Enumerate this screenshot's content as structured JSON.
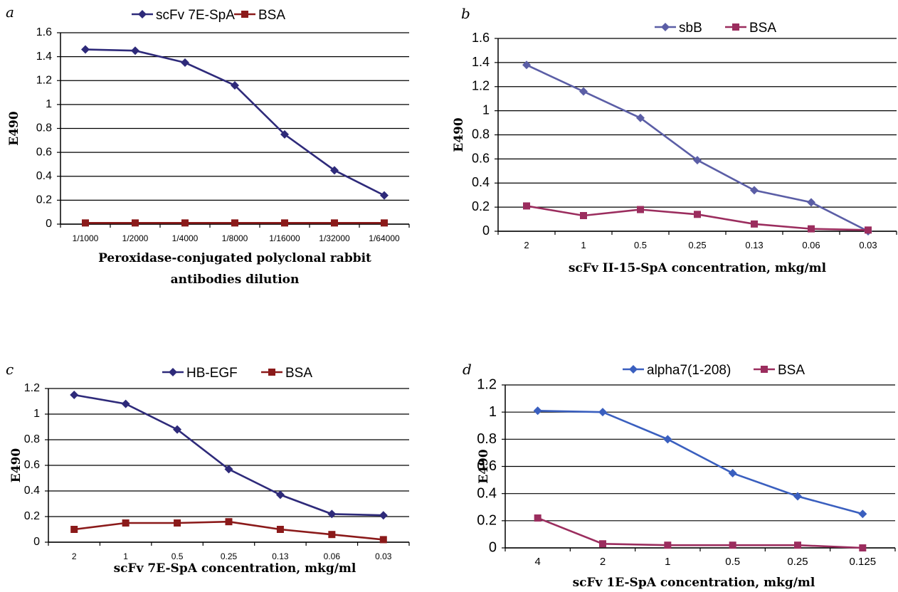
{
  "chart_data": [
    {
      "panel": "a",
      "type": "line",
      "ylabel": "E490",
      "xlabel": [
        "Peroxidase-conjugated polyclonal rabbit",
        "antibodies dilution"
      ],
      "categories": [
        "1/1000",
        "1/2000",
        "1/4000",
        "1/8000",
        "1/16000",
        "1/32000",
        "1/64000"
      ],
      "ylim": [
        0,
        1.6
      ],
      "yticks": [
        "0",
        "0.2",
        "0.4",
        "0.6",
        "0.8",
        "1",
        "1.2",
        "1.4",
        "1.6"
      ],
      "grid": true,
      "legend": "top",
      "series": [
        {
          "name": "scFv 7E-SpA",
          "color": "#2e2a7a",
          "marker": "diamond",
          "values": [
            1.46,
            1.45,
            1.35,
            1.16,
            0.75,
            0.45,
            0.24
          ]
        },
        {
          "name": "BSA",
          "color": "#8b1a1a",
          "marker": "square",
          "values": [
            0.01,
            0.01,
            0.01,
            0.01,
            0.01,
            0.01,
            0.01
          ]
        }
      ]
    },
    {
      "panel": "b",
      "type": "line",
      "ylabel": "E490",
      "xlabel": [
        "scFv II-15-SpA concentration, mkg/ml"
      ],
      "categories": [
        "2",
        "1",
        "0.5",
        "0.25",
        "0.13",
        "0.06",
        "0.03"
      ],
      "ylim": [
        0,
        1.6
      ],
      "yticks": [
        "0",
        "0.2",
        "0.4",
        "0.6",
        "0.8",
        "1",
        "1.2",
        "1.4",
        "1.6"
      ],
      "grid": true,
      "legend": "top",
      "series": [
        {
          "name": "sbB",
          "color": "#5b5ea6",
          "marker": "diamond",
          "values": [
            1.38,
            1.16,
            0.94,
            0.59,
            0.34,
            0.24,
            0.0
          ]
        },
        {
          "name": "BSA",
          "color": "#9b2d5e",
          "marker": "square",
          "values": [
            0.21,
            0.13,
            0.18,
            0.14,
            0.06,
            0.02,
            0.01
          ]
        }
      ]
    },
    {
      "panel": "c",
      "type": "line",
      "ylabel": "E490",
      "xlabel": [
        "scFv 7E-SpA concentration, mkg/ml"
      ],
      "categories": [
        "2",
        "1",
        "0.5",
        "0.25",
        "0.13",
        "0.06",
        "0.03"
      ],
      "ylim": [
        0,
        1.2
      ],
      "yticks": [
        "0",
        "0.2",
        "0.4",
        "0.6",
        "0.8",
        "1",
        "1.2"
      ],
      "grid": true,
      "legend": "top",
      "series": [
        {
          "name": "HB-EGF",
          "color": "#2e2a7a",
          "marker": "diamond",
          "values": [
            1.15,
            1.08,
            0.88,
            0.57,
            0.37,
            0.22,
            0.21
          ]
        },
        {
          "name": "BSA",
          "color": "#8b1a1a",
          "marker": "square",
          "values": [
            0.1,
            0.15,
            0.15,
            0.16,
            0.1,
            0.06,
            0.02
          ]
        }
      ]
    },
    {
      "panel": "d",
      "type": "line",
      "ylabel": "E490",
      "xlabel": [
        "scFv 1E-SpA concentration, mkg/ml"
      ],
      "categories": [
        "4",
        "2",
        "1",
        "0.5",
        "0.25",
        "0.125"
      ],
      "ylim": [
        0,
        1.2
      ],
      "yticks": [
        "0",
        "0.2",
        "0.4",
        "0.6",
        "0.8",
        "1",
        "1.2"
      ],
      "grid": true,
      "legend": "top",
      "series": [
        {
          "name": "alpha7(1-208)",
          "color": "#3a5fbf",
          "marker": "diamond",
          "values": [
            1.01,
            1.0,
            0.8,
            0.55,
            0.38,
            0.25
          ]
        },
        {
          "name": "BSA",
          "color": "#9b2d5e",
          "marker": "square",
          "values": [
            0.22,
            0.03,
            0.02,
            0.02,
            0.02,
            0.0
          ]
        }
      ]
    }
  ]
}
